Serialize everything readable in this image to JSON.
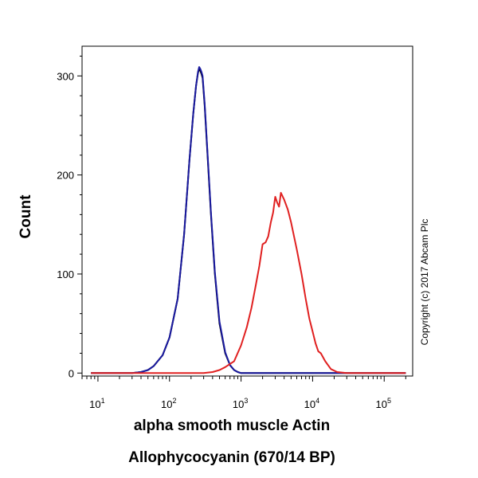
{
  "chart_data": {
    "type": "line",
    "title": "",
    "xlabel": "alpha smooth muscle Actin",
    "xlabel2": "Allophycocyanin (670/14 BP)",
    "ylabel": "Count",
    "xscale": "log",
    "xlim": [
      6,
      250000
    ],
    "ylim": [
      -3,
      330
    ],
    "xticks": [
      {
        "base": "10",
        "exp": "1",
        "value": 10
      },
      {
        "base": "10",
        "exp": "2",
        "value": 100
      },
      {
        "base": "10",
        "exp": "3",
        "value": 1000
      },
      {
        "base": "10",
        "exp": "4",
        "value": 10000
      },
      {
        "base": "10",
        "exp": "5",
        "value": 100000
      }
    ],
    "yticks": [
      {
        "label": "0",
        "value": 0
      },
      {
        "label": "100",
        "value": 100
      },
      {
        "label": "200",
        "value": 200
      },
      {
        "label": "300",
        "value": 300
      }
    ],
    "grid": false,
    "series": [
      {
        "name": "black",
        "color": "#000000",
        "x": [
          8,
          30,
          40,
          50,
          60,
          80,
          100,
          130,
          160,
          190,
          215,
          235,
          250,
          260,
          270,
          280,
          290,
          310,
          340,
          380,
          430,
          500,
          600,
          700,
          800,
          900,
          1000,
          2000,
          200000
        ],
        "y": [
          0,
          0,
          1,
          3,
          7,
          18,
          36,
          75,
          140,
          215,
          262,
          290,
          303,
          307,
          305,
          302,
          298,
          270,
          220,
          160,
          100,
          50,
          20,
          8,
          3,
          1,
          0,
          0,
          0
        ]
      },
      {
        "name": "blue",
        "color": "#1a1aa0",
        "x": [
          8,
          30,
          40,
          50,
          60,
          80,
          100,
          130,
          160,
          190,
          215,
          235,
          250,
          260,
          270,
          280,
          290,
          310,
          340,
          380,
          430,
          500,
          600,
          700,
          800,
          900,
          1000,
          2000,
          200000
        ],
        "y": [
          0,
          0,
          1,
          3,
          7,
          18,
          36,
          75,
          140,
          215,
          262,
          290,
          304,
          309,
          307,
          304,
          300,
          272,
          222,
          162,
          102,
          52,
          21,
          8,
          3,
          1,
          0,
          0,
          0
        ]
      },
      {
        "name": "red",
        "color": "#e02020",
        "x": [
          8,
          300,
          400,
          500,
          600,
          800,
          1000,
          1200,
          1400,
          1600,
          1800,
          2000,
          2200,
          2400,
          2600,
          2800,
          3000,
          3200,
          3400,
          3600,
          4000,
          4500,
          5000,
          6000,
          7000,
          8000,
          9000,
          10000,
          11000,
          12000,
          13000,
          15000,
          18000,
          22000,
          30000,
          200000
        ],
        "y": [
          0,
          0,
          1,
          3,
          6,
          12,
          28,
          46,
          66,
          88,
          108,
          130,
          132,
          138,
          152,
          162,
          178,
          172,
          168,
          182,
          175,
          165,
          152,
          125,
          100,
          75,
          55,
          42,
          30,
          22,
          20,
          12,
          4,
          1,
          0,
          0
        ]
      }
    ],
    "annotation": "Copyright (c) 2017 Abcam Plc"
  }
}
